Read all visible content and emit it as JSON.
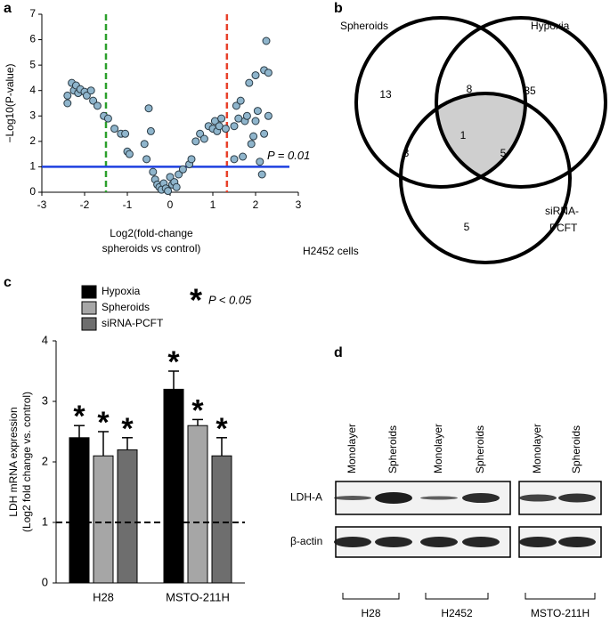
{
  "panel_labels": [
    "a",
    "b",
    "c",
    "d"
  ],
  "chart_data": [
    {
      "type": "scatter",
      "xlabel": [
        "Log2(fold-change",
        "spheroids vs control)"
      ],
      "ylabel": "−Log10(P-value)",
      "xlim": [
        -3,
        3
      ],
      "xticks": [
        -3,
        -2,
        -1,
        0,
        1,
        2,
        3
      ],
      "ylim": [
        0,
        7
      ],
      "yticks": [
        0,
        1,
        2,
        3,
        4,
        5,
        6,
        7
      ],
      "color": "#8fb5cc",
      "x": [
        -2.4,
        -2.4,
        -2.3,
        -2.25,
        -2.2,
        -2.15,
        -2.1,
        -2.0,
        -1.95,
        -1.85,
        -1.8,
        -1.7,
        -1.55,
        -1.45,
        -1.3,
        -1.15,
        -1.05,
        -1.0,
        -0.95,
        -0.6,
        -0.55,
        -0.5,
        -0.45,
        -0.4,
        -0.35,
        -0.3,
        -0.25,
        -0.2,
        -0.15,
        -0.1,
        -0.05,
        0.0,
        0.05,
        0.1,
        0.15,
        0.2,
        0.3,
        0.45,
        0.5,
        0.6,
        0.7,
        0.8,
        0.9,
        1.0,
        1.05,
        1.1,
        1.15,
        1.2,
        1.3,
        1.5,
        1.5,
        1.55,
        1.6,
        1.65,
        1.7,
        1.75,
        1.8,
        1.85,
        1.9,
        1.95,
        2.0,
        2.0,
        2.05,
        2.1,
        2.15,
        2.2,
        2.2,
        2.25,
        2.3,
        2.3
      ],
      "values": [
        3.5,
        3.8,
        4.3,
        4.0,
        4.2,
        3.9,
        4.05,
        3.95,
        3.8,
        4.0,
        3.6,
        3.4,
        3.0,
        2.9,
        2.5,
        2.3,
        2.3,
        1.6,
        1.5,
        1.9,
        1.3,
        3.3,
        2.4,
        0.8,
        0.5,
        0.3,
        0.2,
        0.1,
        0.35,
        0.15,
        0.05,
        0.6,
        0.3,
        0.4,
        0.2,
        0.7,
        0.9,
        1.1,
        1.3,
        2.0,
        2.3,
        2.1,
        2.6,
        2.5,
        2.8,
        2.4,
        2.6,
        2.9,
        2.5,
        1.3,
        2.6,
        3.4,
        2.9,
        3.6,
        1.4,
        2.8,
        3.0,
        4.3,
        1.9,
        2.2,
        4.6,
        2.8,
        3.2,
        1.2,
        0.7,
        4.8,
        2.3,
        5.95,
        4.7,
        3.0
      ],
      "vlines": [
        {
          "value": -1.5,
          "color": "#2ca02c"
        },
        {
          "value": 1.33,
          "color": "#e8402a"
        }
      ],
      "hlines": [
        {
          "value": 1,
          "color": "#1e40e0",
          "label": "P = 0.01"
        }
      ]
    },
    {
      "type": "bar",
      "ylabel": [
        "LDH mRNA expression",
        "(Log2 fold change vs. control)"
      ],
      "categories": [
        "H28",
        "MSTO-211H"
      ],
      "ylim": [
        0,
        4
      ],
      "yticks": [
        0,
        1,
        2,
        3,
        4
      ],
      "series": [
        {
          "name": "Hypoxia",
          "color": "#000000",
          "values": [
            2.4,
            3.2
          ],
          "errors": [
            0.2,
            0.3
          ]
        },
        {
          "name": "Spheroids",
          "color": "#a6a6a6",
          "values": [
            2.1,
            2.6
          ],
          "errors": [
            0.4,
            0.1
          ]
        },
        {
          "name": "siRNA-PCFT",
          "color": "#6e6e6e",
          "values": [
            2.2,
            2.1
          ],
          "errors": [
            0.2,
            0.3
          ]
        }
      ],
      "hlines": [
        {
          "value": 1,
          "style": "dashed"
        }
      ],
      "significance_symbol": "*",
      "significance_note": "P < 0.05"
    }
  ],
  "venn": {
    "sets": [
      "Spheroids",
      "Hypoxia"
    ],
    "third_set": [
      "siRNA-",
      "PCFT"
    ],
    "counts": {
      "spheroids_only": 13,
      "spheroids_hypoxia": 8,
      "hypoxia_only": 35,
      "spheroids_sirna": 3,
      "all": 1,
      "hypoxia_sirna": 5,
      "sirna_only": 5
    },
    "caption": "H2452 cells"
  },
  "blot": {
    "lanes": [
      "Monolayer",
      "Spheroids",
      "Monolayer",
      "Spheroids",
      "Monolayer",
      "Spheroids"
    ],
    "rows": [
      "LDH-A",
      "β-actin"
    ],
    "groups": [
      "H28",
      "H2452",
      "MSTO-211H"
    ]
  }
}
